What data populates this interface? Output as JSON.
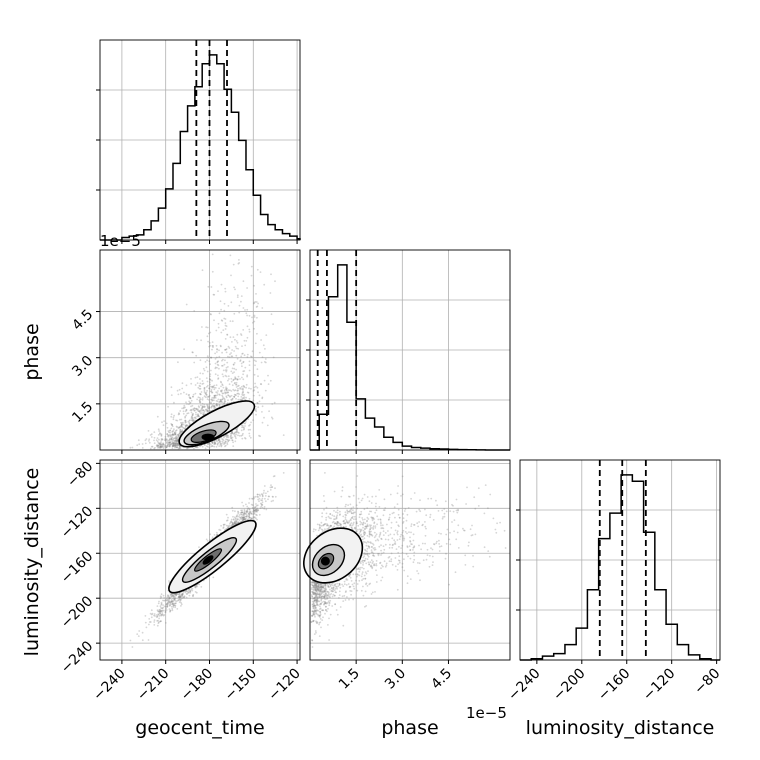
{
  "chart_data": {
    "type": "scatter",
    "params": [
      "geocent_time",
      "phase",
      "luminosity_distance"
    ],
    "axis_labels": {
      "geocent_time": "geocent_time",
      "phase": "phase",
      "luminosity_distance": "luminosity_distance"
    },
    "ranges": {
      "geocent_time": [
        -255,
        -118
      ],
      "phase": [
        0.0,
        6.5e-05
      ],
      "luminosity_distance": [
        -255,
        -77
      ]
    },
    "ticks": {
      "geocent_time": [
        -240,
        -210,
        -180,
        -150,
        -120
      ],
      "phase": [
        1.5e-05,
        3e-05,
        4.5e-05
      ],
      "luminosity_distance": [
        -240,
        -200,
        -160,
        -120,
        -80
      ]
    },
    "tick_labels": {
      "geocent_time": [
        "−240",
        "−210",
        "−180",
        "−150",
        "−120"
      ],
      "phase": [
        "1.5",
        "3.0",
        "4.5"
      ],
      "luminosity_distance_x": [
        "−240",
        "−200",
        "−160",
        "−120",
        "−80"
      ],
      "luminosity_distance_y": [
        "−80",
        "−120",
        "−160",
        "−200",
        "−240"
      ]
    },
    "phase_offset_label": "1e−5",
    "quantiles": {
      "geocent_time": [
        -189,
        -180,
        -168
      ],
      "phase": [
        2.5e-06,
        5.5e-06,
        1.5e-05
      ],
      "luminosity_distance": [
        -184,
        -164,
        -143
      ]
    },
    "histograms": {
      "geocent_time": {
        "edges": [
          -255,
          -240,
          -235,
          -230,
          -225,
          -220,
          -215,
          -210,
          -205,
          -200,
          -195,
          -190,
          -185,
          -180,
          -175,
          -170,
          -165,
          -160,
          -155,
          -150,
          -145,
          -140,
          -135,
          -130,
          -125,
          -120,
          -118
        ],
        "counts": [
          0,
          2,
          3,
          4,
          8,
          15,
          25,
          40,
          60,
          85,
          105,
          120,
          138,
          145,
          138,
          118,
          100,
          78,
          55,
          35,
          20,
          12,
          8,
          5,
          3,
          1
        ]
      },
      "phase": {
        "edges": [
          0.0,
          3e-06,
          6e-06,
          9e-06,
          1.2e-05,
          1.5e-05,
          1.8e-05,
          2.1e-05,
          2.4e-05,
          2.7e-05,
          3e-05,
          3.3e-05,
          3.6e-05,
          3.9e-05,
          4.2e-05,
          4.5e-05,
          4.8e-05,
          5.1e-05,
          5.4e-05,
          5.7e-05,
          6e-05,
          6.5e-05
        ],
        "counts": [
          0,
          28,
          120,
          145,
          100,
          40,
          25,
          18,
          10,
          6,
          3,
          2,
          1.5,
          1,
          0.8,
          0.5,
          0.3,
          0.2,
          0.1,
          0,
          0
        ]
      },
      "luminosity_distance": {
        "edges": [
          -255,
          -245,
          -235,
          -225,
          -215,
          -205,
          -195,
          -185,
          -175,
          -165,
          -155,
          -145,
          -135,
          -125,
          -115,
          -105,
          -95,
          -85,
          -77
        ],
        "counts": [
          0,
          1,
          3,
          5,
          12,
          25,
          55,
          95,
          115,
          145,
          140,
          100,
          55,
          28,
          12,
          4,
          1,
          0
        ]
      }
    },
    "grid": true,
    "contour_levels": [
      "inner",
      "middle",
      "outer"
    ]
  }
}
